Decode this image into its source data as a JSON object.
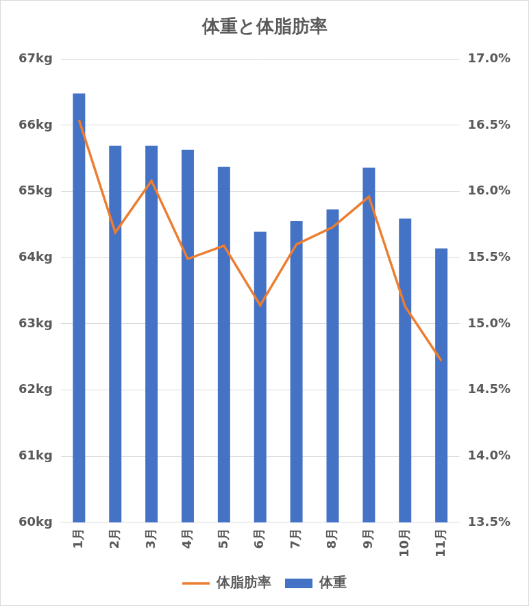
{
  "chart_data": {
    "type": "bar",
    "title": "体重と体脂肪率",
    "categories": [
      "1月",
      "2月",
      "3月",
      "4月",
      "5月",
      "6月",
      "7月",
      "8月",
      "9月",
      "10月",
      "11月"
    ],
    "series": [
      {
        "name": "体重",
        "type": "bar",
        "color": "#4472c4",
        "values": [
          66.48,
          65.69,
          65.69,
          65.63,
          65.37,
          64.39,
          64.55,
          64.73,
          65.36,
          64.59,
          64.14
        ]
      },
      {
        "name": "体脂肪率",
        "type": "line",
        "color": "#ed7d31",
        "axis": "y2",
        "values": [
          16.54,
          15.69,
          16.08,
          15.49,
          15.59,
          15.14,
          15.6,
          15.73,
          15.96,
          15.13,
          14.72
        ]
      }
    ],
    "ylim": [
      60,
      67
    ],
    "yticks": [
      {
        "value": 60,
        "label": "60kg"
      },
      {
        "value": 61,
        "label": "61kg"
      },
      {
        "value": 62,
        "label": "62kg"
      },
      {
        "value": 63,
        "label": "63kg"
      },
      {
        "value": 64,
        "label": "64kg"
      },
      {
        "value": 65,
        "label": "65kg"
      },
      {
        "value": 66,
        "label": "66kg"
      },
      {
        "value": 67,
        "label": "67kg"
      }
    ],
    "y2lim": [
      13.5,
      17.0
    ],
    "y2ticks": [
      {
        "value": 13.5,
        "label": "13.5%"
      },
      {
        "value": 14.0,
        "label": "14.0%"
      },
      {
        "value": 14.5,
        "label": "14.5%"
      },
      {
        "value": 15.0,
        "label": "15.0%"
      },
      {
        "value": 15.5,
        "label": "15.5%"
      },
      {
        "value": 16.0,
        "label": "16.0%"
      },
      {
        "value": 16.5,
        "label": "16.5%"
      },
      {
        "value": 17.0,
        "label": "17.0%"
      }
    ],
    "grid": true,
    "legend": "bottom"
  }
}
